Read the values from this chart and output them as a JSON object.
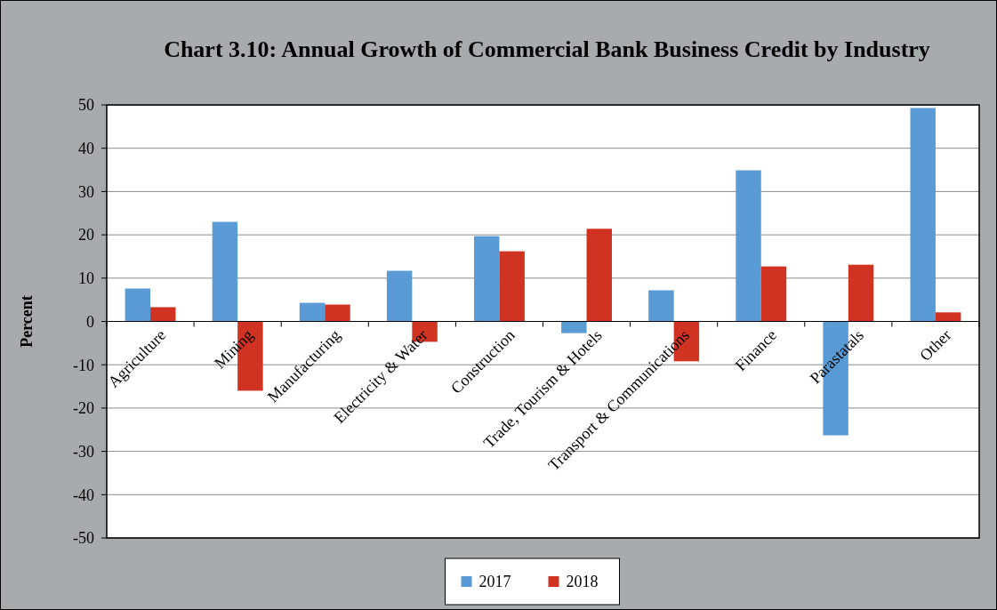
{
  "chart_data": {
    "type": "bar",
    "title": "Chart 3.10: Annual Growth of Commercial Bank Business Credit by Industry",
    "ylabel": "Percent",
    "categories": [
      "Agriculture",
      "Mining",
      "Manufacturing",
      "Electricity & Water",
      "Construction",
      "Trade, Tourism & Hotels",
      "Transport & Communications",
      "Finance",
      "Parastatals",
      "Other"
    ],
    "series": [
      {
        "name": "2017",
        "color": "#5b9bd5",
        "values": [
          7.6,
          23,
          4.3,
          11.7,
          19.7,
          -2.7,
          7.2,
          34.9,
          -26.3,
          49.3
        ]
      },
      {
        "name": "2018",
        "color": "#d03322",
        "values": [
          3.3,
          -16,
          3.9,
          -4.7,
          16.2,
          21.4,
          -9.2,
          12.7,
          13.1,
          2.1
        ]
      }
    ],
    "ylim": [
      -50,
      50
    ],
    "yticks": [
      -50,
      -40,
      -30,
      -20,
      -10,
      0,
      10,
      20,
      30,
      40,
      50
    ],
    "grid": "y",
    "legend": "bottom"
  }
}
